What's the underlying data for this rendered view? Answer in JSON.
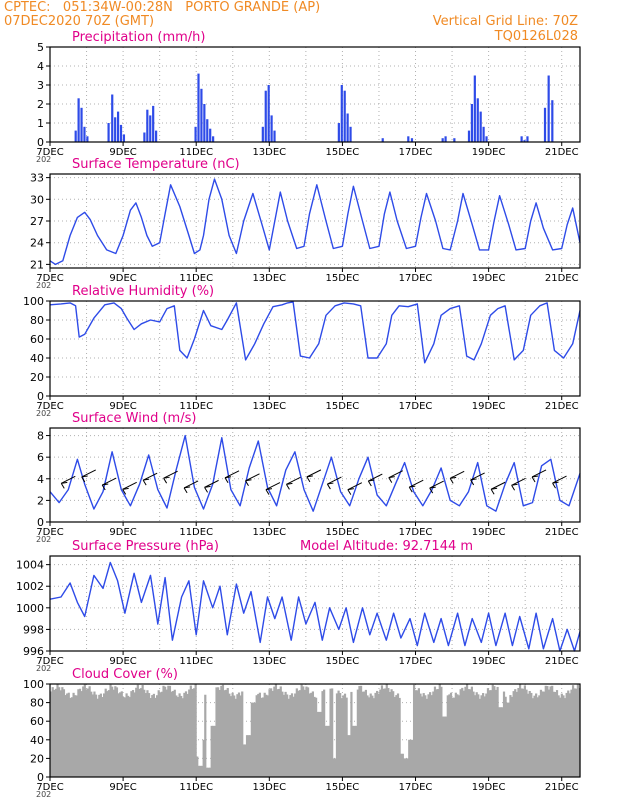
{
  "header": {
    "line1": "CPTEC:   051:34W-00:28N   PORTO GRANDE (AP)",
    "line2": "07DEC2020 70Z (GMT)",
    "grid_note": "Vertical Grid Line: 70Z",
    "code": "TQ0126L028"
  },
  "colors": {
    "header": "#f08a24",
    "title": "#e0008a",
    "line": "#2e4be8",
    "bar": "#2e4be8",
    "cloud": "#a8a8a8",
    "grid": "#b0b0b0"
  },
  "x_ticks": [
    "7DEC",
    "9DEC",
    "11DEC",
    "13DEC",
    "15DEC",
    "17DEC",
    "19DEC",
    "21DEC"
  ],
  "x_tick_suffix": "202",
  "chart_data": [
    {
      "id": "precip",
      "type": "bar",
      "title": "Precipitation  (mm/h)",
      "ylim": [
        0,
        5
      ],
      "yticks": [
        "0",
        "1",
        "2",
        "3",
        "4",
        "5"
      ],
      "grid": true,
      "x": [
        0.7,
        0.78,
        0.86,
        0.94,
        1.02,
        1.6,
        1.7,
        1.78,
        1.86,
        1.94,
        2.02,
        2.58,
        2.66,
        2.74,
        2.82,
        2.9,
        3.98,
        4.06,
        4.14,
        4.22,
        4.3,
        4.38,
        4.46,
        5.82,
        5.9,
        5.98,
        6.06,
        6.14,
        7.9,
        7.98,
        8.06,
        8.14,
        8.22,
        9.1,
        9.8,
        9.9,
        10.74,
        10.82,
        11.06,
        11.46,
        11.54,
        11.62,
        11.7,
        11.78,
        11.86,
        11.94,
        12.9,
        12.98,
        13.06,
        13.54,
        13.64,
        13.74
      ],
      "values": [
        0.6,
        2.3,
        1.8,
        0.8,
        0.3,
        1.0,
        2.5,
        1.3,
        1.6,
        0.9,
        0.4,
        0.5,
        1.7,
        1.4,
        1.9,
        0.6,
        0.8,
        3.6,
        2.8,
        2.0,
        1.2,
        0.7,
        0.3,
        0.8,
        2.7,
        3.0,
        1.4,
        0.6,
        1.0,
        3.0,
        2.7,
        1.5,
        0.8,
        0.2,
        0.3,
        0.2,
        0.2,
        0.3,
        0.2,
        0.6,
        2.0,
        3.5,
        2.3,
        1.6,
        0.8,
        0.3,
        0.3,
        0.1,
        0.3,
        1.8,
        3.5,
        2.2
      ]
    },
    {
      "id": "temp",
      "type": "line",
      "title": "Surface Temperature (nC)",
      "ylim": [
        20.5,
        33.5
      ],
      "yticks": [
        "21",
        "24",
        "27",
        "30",
        "33"
      ],
      "grid": true,
      "x": [
        0,
        0.15,
        0.35,
        0.55,
        0.75,
        0.95,
        1.1,
        1.3,
        1.55,
        1.8,
        2.0,
        2.2,
        2.35,
        2.5,
        2.65,
        2.8,
        3.0,
        3.15,
        3.3,
        3.55,
        3.8,
        3.95,
        4.1,
        4.2,
        4.35,
        4.5,
        4.7,
        4.9,
        5.1,
        5.3,
        5.55,
        5.8,
        6.0,
        6.15,
        6.3,
        6.5,
        6.75,
        6.95,
        7.1,
        7.3,
        7.55,
        7.75,
        8.0,
        8.15,
        8.3,
        8.55,
        8.75,
        9.0,
        9.15,
        9.3,
        9.5,
        9.75,
        10.0,
        10.15,
        10.3,
        10.55,
        10.75,
        10.95,
        11.15,
        11.3,
        11.55,
        11.75,
        12.0,
        12.15,
        12.3,
        12.55,
        12.75,
        13.0,
        13.15,
        13.3,
        13.5,
        13.75,
        14.0,
        14.15,
        14.3,
        14.5
      ],
      "values": [
        21.5,
        21.0,
        21.5,
        25.0,
        27.5,
        28.2,
        27.2,
        25.0,
        23.0,
        22.5,
        25.0,
        28.5,
        29.5,
        27.5,
        25.0,
        23.5,
        24.0,
        28.0,
        32.0,
        29.0,
        25.0,
        22.5,
        23.0,
        25.0,
        30.0,
        32.8,
        30.0,
        25.0,
        22.5,
        27.0,
        30.8,
        26.5,
        23.0,
        27.0,
        31.0,
        27.0,
        23.2,
        23.5,
        28.0,
        32.0,
        27.0,
        23.2,
        23.5,
        28.0,
        31.8,
        27.0,
        23.2,
        23.5,
        28.0,
        31.0,
        27.0,
        23.2,
        23.5,
        27.5,
        30.8,
        27.0,
        23.2,
        23.0,
        27.0,
        30.8,
        26.5,
        23.0,
        23.0,
        27.0,
        30.5,
        26.5,
        23.0,
        23.2,
        27.0,
        29.5,
        26.0,
        23.0,
        23.2,
        26.5,
        28.8,
        24.0
      ]
    },
    {
      "id": "rh",
      "type": "line",
      "title": "Relative Humidity (%)",
      "ylim": [
        0,
        100
      ],
      "yticks": [
        "0",
        "20",
        "40",
        "60",
        "80",
        "100"
      ],
      "grid": true,
      "x": [
        0,
        0.3,
        0.55,
        0.7,
        0.8,
        0.95,
        1.2,
        1.5,
        1.75,
        1.95,
        2.1,
        2.3,
        2.5,
        2.75,
        3.0,
        3.2,
        3.4,
        3.55,
        3.75,
        3.95,
        4.2,
        4.4,
        4.7,
        4.85,
        5.1,
        5.35,
        5.6,
        5.85,
        6.1,
        6.35,
        6.5,
        6.65,
        6.85,
        7.1,
        7.35,
        7.55,
        7.8,
        8.05,
        8.3,
        8.5,
        8.7,
        8.95,
        9.2,
        9.35,
        9.55,
        9.8,
        10.05,
        10.25,
        10.5,
        10.7,
        10.95,
        11.2,
        11.4,
        11.6,
        11.8,
        12.05,
        12.25,
        12.45,
        12.7,
        12.95,
        13.15,
        13.4,
        13.6,
        13.8,
        14.05,
        14.3,
        14.5
      ],
      "values": [
        96,
        97,
        98,
        95,
        62,
        65,
        82,
        96,
        98,
        92,
        82,
        70,
        76,
        80,
        78,
        92,
        95,
        48,
        40,
        60,
        90,
        74,
        70,
        80,
        98,
        38,
        55,
        76,
        94,
        96,
        98,
        99,
        42,
        40,
        55,
        85,
        95,
        98,
        97,
        95,
        40,
        40,
        55,
        85,
        95,
        94,
        97,
        35,
        55,
        85,
        92,
        95,
        42,
        38,
        55,
        85,
        92,
        95,
        38,
        48,
        85,
        95,
        98,
        48,
        40,
        55,
        90
      ]
    },
    {
      "id": "wind",
      "type": "line",
      "title": "Surface Wind  (m/s)",
      "ylim": [
        0,
        8.7
      ],
      "yticks": [
        "0",
        "2",
        "4",
        "6",
        "8"
      ],
      "grid": true,
      "x": [
        0,
        0.25,
        0.5,
        0.75,
        0.95,
        1.2,
        1.45,
        1.7,
        1.95,
        2.2,
        2.45,
        2.7,
        2.95,
        3.2,
        3.45,
        3.7,
        3.95,
        4.2,
        4.45,
        4.7,
        4.95,
        5.2,
        5.45,
        5.7,
        5.95,
        6.2,
        6.45,
        6.7,
        6.95,
        7.2,
        7.45,
        7.7,
        7.95,
        8.2,
        8.45,
        8.7,
        8.95,
        9.2,
        9.45,
        9.7,
        9.95,
        10.2,
        10.45,
        10.7,
        10.95,
        11.2,
        11.45,
        11.7,
        11.95,
        12.2,
        12.45,
        12.7,
        12.95,
        13.2,
        13.45,
        13.7,
        13.95,
        14.2,
        14.5
      ],
      "values": [
        2.8,
        1.8,
        3.0,
        5.8,
        3.5,
        1.2,
        2.8,
        6.5,
        3.0,
        1.5,
        3.5,
        6.2,
        3.0,
        1.3,
        4.8,
        8.0,
        3.2,
        1.2,
        3.5,
        7.8,
        3.0,
        1.5,
        5.0,
        7.5,
        3.2,
        1.5,
        4.8,
        6.5,
        3.0,
        1.0,
        3.5,
        6.0,
        2.8,
        1.5,
        4.0,
        6.0,
        2.5,
        1.5,
        3.5,
        5.5,
        2.8,
        1.5,
        3.0,
        5.0,
        2.0,
        1.5,
        2.8,
        5.5,
        1.5,
        1.0,
        3.5,
        5.5,
        1.5,
        1.8,
        5.2,
        5.8,
        2.0,
        1.5,
        4.5
      ],
      "vector_count": 25
    },
    {
      "id": "press",
      "type": "line",
      "title": "Surface Pressure (hPa)",
      "annotation": "Model Altitude: 92.7144 m",
      "ylim": [
        996,
        1004.8
      ],
      "yticks": [
        "996",
        "998",
        "1000",
        "1002",
        "1004"
      ],
      "grid": true,
      "x": [
        0,
        0.3,
        0.55,
        0.75,
        0.95,
        1.2,
        1.45,
        1.65,
        1.85,
        2.05,
        2.3,
        2.5,
        2.75,
        2.95,
        3.15,
        3.35,
        3.6,
        3.8,
        4.0,
        4.2,
        4.45,
        4.65,
        4.85,
        5.1,
        5.3,
        5.5,
        5.75,
        5.95,
        6.15,
        6.35,
        6.6,
        6.8,
        7.0,
        7.25,
        7.45,
        7.65,
        7.9,
        8.1,
        8.3,
        8.55,
        8.75,
        8.95,
        9.2,
        9.4,
        9.6,
        9.85,
        10.05,
        10.25,
        10.5,
        10.7,
        10.9,
        11.15,
        11.35,
        11.55,
        11.8,
        12.0,
        12.2,
        12.45,
        12.65,
        12.85,
        13.1,
        13.3,
        13.5,
        13.75,
        13.95,
        14.15,
        14.35,
        14.5
      ],
      "values": [
        1000.8,
        1001.0,
        1002.3,
        1000.5,
        999.2,
        1003.0,
        1001.8,
        1004.2,
        1002.5,
        999.5,
        1003.2,
        1000.5,
        1003.0,
        998.5,
        1002.8,
        997.0,
        1001.0,
        1002.5,
        997.5,
        1002.5,
        1000.0,
        1002.0,
        997.5,
        1002.2,
        999.5,
        1001.5,
        996.8,
        1001.0,
        999.0,
        1001.0,
        997.0,
        1001.0,
        998.5,
        1000.5,
        997.0,
        1000.0,
        998.0,
        1000.0,
        996.8,
        1000.0,
        997.5,
        999.5,
        997.0,
        999.5,
        997.2,
        999.0,
        996.5,
        999.5,
        996.8,
        999.0,
        996.5,
        999.5,
        996.5,
        999.0,
        996.8,
        999.5,
        996.5,
        999.5,
        996.5,
        999.2,
        996.2,
        999.5,
        996.2,
        999.0,
        996.0,
        998.0,
        996.0,
        997.8
      ]
    },
    {
      "id": "cloud",
      "type": "area",
      "title": "Cloud Cover (%)",
      "ylim": [
        0,
        100
      ],
      "yticks": [
        "0",
        "20",
        "40",
        "60",
        "80",
        "100"
      ],
      "grid": true,
      "base_level": 92,
      "dips": [
        [
          4.05,
          22
        ],
        [
          4.1,
          12
        ],
        [
          4.15,
          40
        ],
        [
          4.3,
          10
        ],
        [
          4.45,
          55
        ],
        [
          5.3,
          35
        ],
        [
          5.42,
          45
        ],
        [
          5.55,
          80
        ],
        [
          7.35,
          70
        ],
        [
          7.55,
          55
        ],
        [
          7.75,
          20
        ],
        [
          8.15,
          45
        ],
        [
          8.3,
          55
        ],
        [
          9.6,
          25
        ],
        [
          9.72,
          20
        ],
        [
          9.85,
          40
        ],
        [
          10.75,
          65
        ],
        [
          12.3,
          75
        ],
        [
          12.5,
          80
        ]
      ]
    }
  ]
}
